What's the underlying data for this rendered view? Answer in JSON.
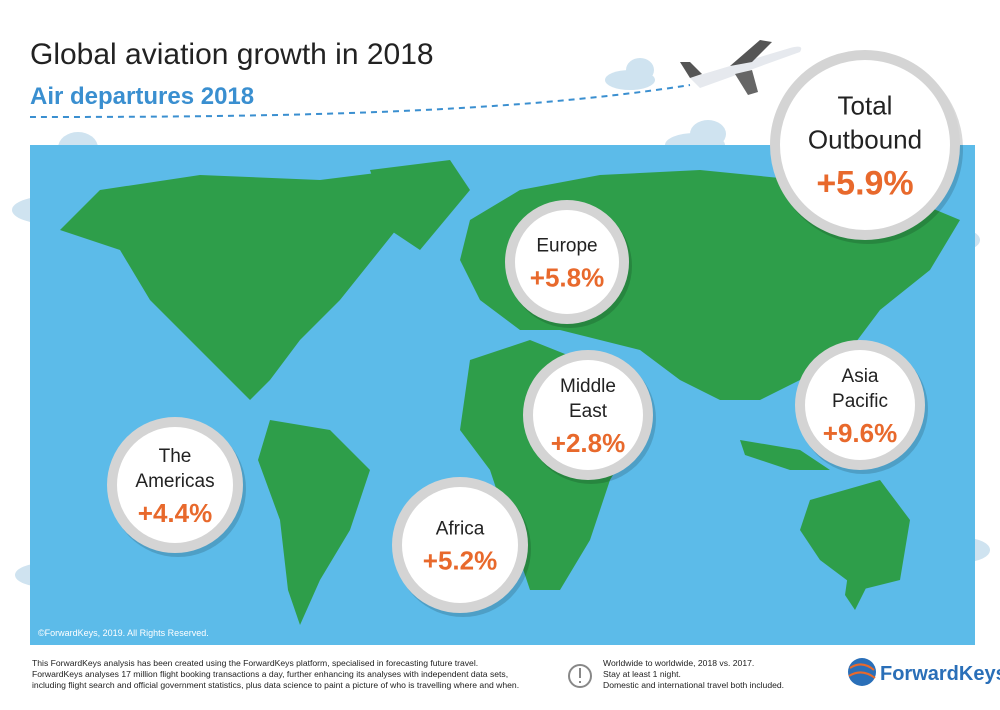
{
  "header": {
    "title": "Global aviation growth in 2018",
    "subtitle": "Air departures 2018"
  },
  "regions": [
    {
      "name": [
        "Total",
        "Outbound"
      ],
      "value": "+5.9%"
    },
    {
      "name": [
        "Europe"
      ],
      "value": "+5.8%"
    },
    {
      "name": [
        "Middle",
        "East"
      ],
      "value": "+2.8%"
    },
    {
      "name": [
        "Asia",
        "Pacific"
      ],
      "value": "+9.6%"
    },
    {
      "name": [
        "The",
        "Americas"
      ],
      "value": "+4.4%"
    },
    {
      "name": [
        "Africa"
      ],
      "value": "+5.2%"
    }
  ],
  "copyright": "©ForwardKeys, 2019. All Rights Reserved.",
  "footer": {
    "left": [
      "This ForwardKeys analysis has been created using the ForwardKeys platform, specialised in forecasting future travel.",
      "ForwardKeys analyses 17 million flight booking transactions a day, further enhancing its analyses with independent data sets,",
      "including flight search and official government statistics, plus data science to paint a picture of who is travelling where and when."
    ],
    "right": [
      "Worldwide to worldwide, 2018 vs. 2017.",
      "Stay at least 1 night.",
      "Domestic and international travel both included."
    ],
    "logo": "ForwardKeys"
  }
}
